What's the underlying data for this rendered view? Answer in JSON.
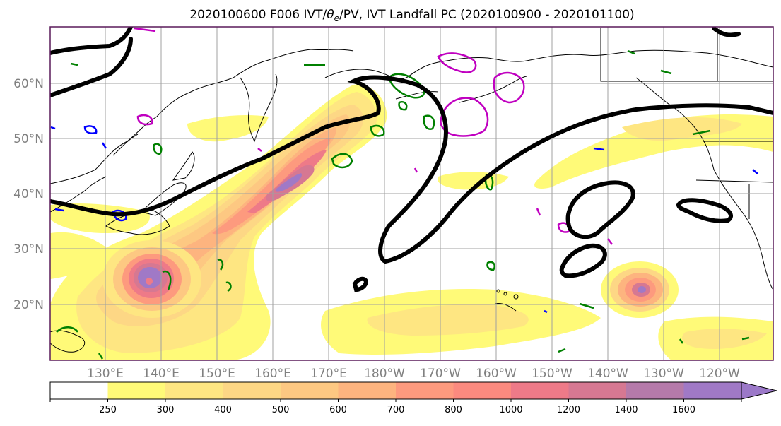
{
  "title": {
    "prefix": "2020100600 F006 IVT/",
    "theta": "θ",
    "sub": "e",
    "suffix": "/PV, IVT Landfall PC (2020100900 - 2020101100)"
  },
  "map": {
    "lat_labels": [
      "60°N",
      "50°N",
      "40°N",
      "30°N",
      "20°N"
    ],
    "lon_labels": [
      "130°E",
      "140°E",
      "150°E",
      "160°E",
      "170°E",
      "180°W",
      "170°W",
      "160°W",
      "150°W",
      "140°W",
      "130°W",
      "120°W"
    ],
    "label_color": "#808080",
    "grid_color": "#a0a0a0",
    "frame_color": "#5a1a5a"
  },
  "colorbar": {
    "tick_labels": [
      "250",
      "300",
      "400",
      "500",
      "600",
      "700",
      "800",
      "1000",
      "1200",
      "1400",
      "1600"
    ],
    "colors": [
      "#ffffff",
      "#fffa78",
      "#fee682",
      "#fdd785",
      "#fdc882",
      "#fdb47f",
      "#fd9a7e",
      "#fb8a7f",
      "#ee7a88",
      "#d67892",
      "#b57aaa",
      "#a079c6",
      "#9b78c8"
    ]
  },
  "legend_colors": {
    "theta_e_contour": "#000000",
    "pv_positive": "#008000",
    "pv_negative": "#0000ff",
    "pv_high": "#c000c0"
  }
}
